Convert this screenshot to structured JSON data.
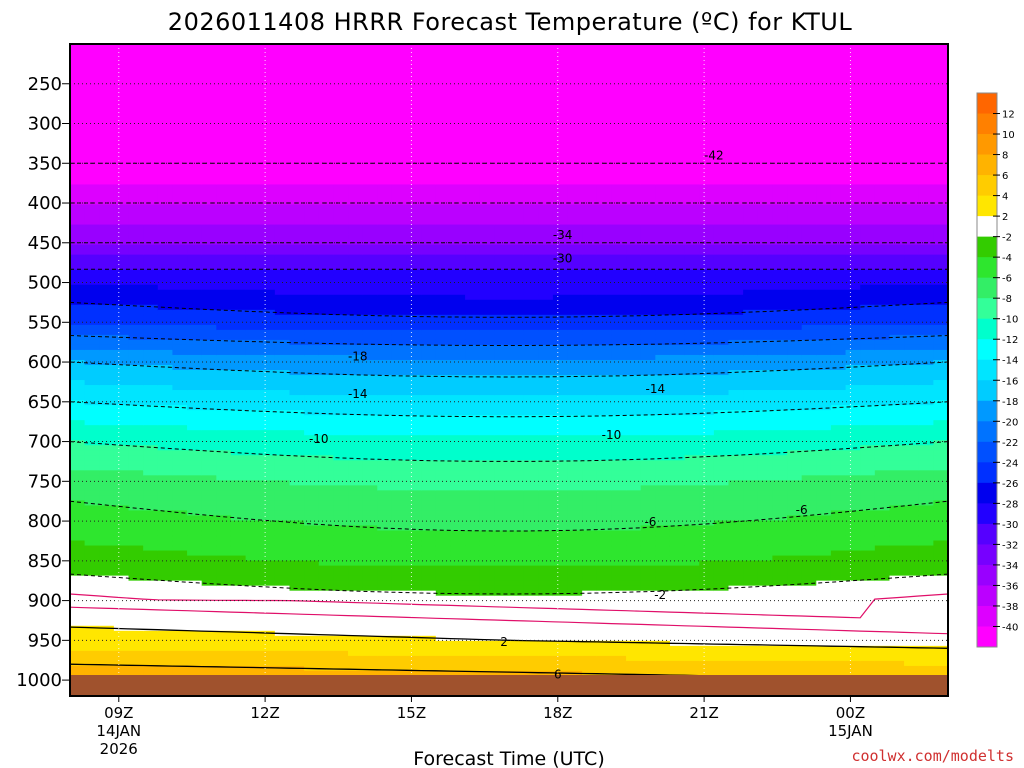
{
  "chart_data": {
    "type": "heatmap",
    "title": "2026011408 HRRR Forecast Temperature (ºC) for KTUL",
    "xlabel": "Forecast Time (UTC)",
    "ylabel": "",
    "credit": "coolwx.com/modelts",
    "y_axis": {
      "scale": "pressure (hPa), inverted",
      "ticks": [
        "250",
        "300",
        "350",
        "400",
        "450",
        "500",
        "550",
        "600",
        "650",
        "700",
        "750",
        "800",
        "850",
        "900",
        "950",
        "1000"
      ],
      "ylim": [
        200,
        1020
      ]
    },
    "x_axis": {
      "range_hours": [
        0,
        18
      ],
      "ticks": [
        {
          "hour": 1,
          "label": "09Z",
          "line2": "14JAN",
          "line3": "2026"
        },
        {
          "hour": 4,
          "label": "12Z",
          "line2": "",
          "line3": ""
        },
        {
          "hour": 7,
          "label": "15Z",
          "line2": "",
          "line3": ""
        },
        {
          "hour": 10,
          "label": "18Z",
          "line2": "",
          "line3": ""
        },
        {
          "hour": 13,
          "label": "21Z",
          "line2": "",
          "line3": ""
        },
        {
          "hour": 16,
          "label": "00Z",
          "line2": "15JAN",
          "line3": ""
        }
      ]
    },
    "colorbar": {
      "labels": [
        "12",
        "10",
        "8",
        "6",
        "4",
        "2",
        "-2",
        "-4",
        "-6",
        "-8",
        "-10",
        "-12",
        "-14",
        "-16",
        "-18",
        "-20",
        "-22",
        "-24",
        "-26",
        "-28",
        "-30",
        "-32",
        "-34",
        "-36",
        "-38",
        "-40"
      ],
      "colors": [
        "#ff6600",
        "#ff8000",
        "#ff9900",
        "#ffb300",
        "#ffcc00",
        "#ffe600",
        "#ffffff",
        "#33cc00",
        "#2ee62e",
        "#33ee66",
        "#33ff99",
        "#00ffcc",
        "#00ffff",
        "#00e5ff",
        "#00ccff",
        "#0099ff",
        "#0073ff",
        "#0050ff",
        "#0030ff",
        "#0000ee",
        "#2200ff",
        "#5500ff",
        "#7700ff",
        "#9900ff",
        "#bb00ff",
        "#dd00ff",
        "#ff00ff"
      ]
    },
    "contour_labels": [
      {
        "text": "-42",
        "hour": 13.2,
        "p": 340
      },
      {
        "text": "-34",
        "hour": 10.1,
        "p": 440
      },
      {
        "text": "-30",
        "hour": 10.1,
        "p": 470
      },
      {
        "text": "-18",
        "hour": 5.9,
        "p": 593
      },
      {
        "text": "-14",
        "hour": 5.9,
        "p": 640
      },
      {
        "text": "-14",
        "hour": 12.0,
        "p": 634
      },
      {
        "text": "-10",
        "hour": 5.1,
        "p": 697
      },
      {
        "text": "-10",
        "hour": 11.1,
        "p": 692
      },
      {
        "text": "-6",
        "hour": 11.9,
        "p": 801
      },
      {
        "text": "-6",
        "hour": 15.0,
        "p": 786
      },
      {
        "text": "-2",
        "hour": 12.1,
        "p": 893
      },
      {
        "text": "2",
        "hour": 8.9,
        "p": 952
      },
      {
        "text": "6",
        "hour": 10.0,
        "p": 993
      }
    ]
  }
}
